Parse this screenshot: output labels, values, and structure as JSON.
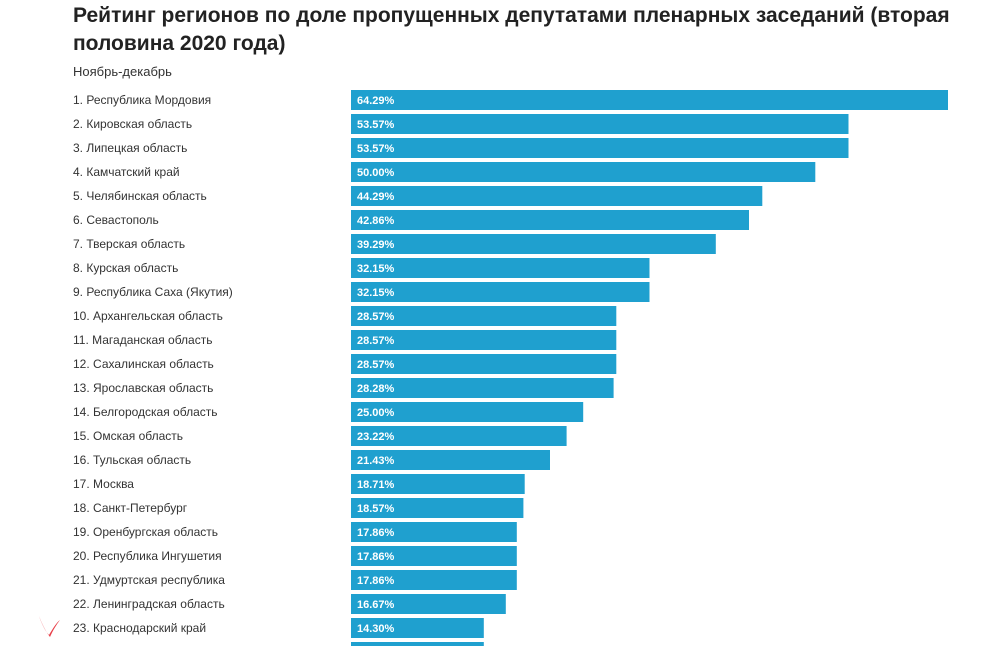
{
  "chart_data": {
    "type": "bar",
    "orientation": "horizontal",
    "title": "Рейтинг регионов по доле пропущенных депутатами пленарных заседаний (вторая половина 2020 года)",
    "subtitle": "Ноябрь-декабрь",
    "categories": [
      "1. Республика Мордовия",
      "2. Кировская область",
      "3. Липецкая область",
      "4. Камчатский край",
      "5. Челябинская область",
      "6. Севастополь",
      "7. Тверская область",
      "8. Курская область",
      "9. Республика Саха (Якутия)",
      "10. Архангельская область",
      "11. Магаданская область",
      "12. Сахалинская область",
      "13. Ярославская область",
      "14. Белгородская область",
      "15. Омская область",
      "16. Тульская область",
      "17. Москва",
      "18. Санкт-Петербург",
      "19. Оренбургская область",
      "20. Республика Ингушетия",
      "21. Удмуртская республика",
      "22. Ленинградская область",
      "23. Краснодарский край"
    ],
    "values": [
      64.29,
      53.57,
      53.57,
      50.0,
      44.29,
      42.86,
      39.29,
      32.15,
      32.15,
      28.57,
      28.57,
      28.57,
      28.28,
      25.0,
      23.22,
      21.43,
      18.71,
      18.57,
      17.86,
      17.86,
      17.86,
      16.67,
      14.3
    ],
    "value_labels": [
      "64.29%",
      "53.57%",
      "53.57%",
      "50.00%",
      "44.29%",
      "42.86%",
      "39.29%",
      "32.15%",
      "32.15%",
      "28.57%",
      "28.57%",
      "28.57%",
      "28.28%",
      "25.00%",
      "23.22%",
      "21.43%",
      "18.71%",
      "18.57%",
      "17.86%",
      "17.86%",
      "17.86%",
      "16.67%",
      "14.30%"
    ],
    "xlim": [
      0,
      64.29
    ],
    "bar_color": "#1fa0cf",
    "grid": false,
    "legend": "none"
  },
  "annotation": {
    "mark_color": "#e8404a"
  }
}
